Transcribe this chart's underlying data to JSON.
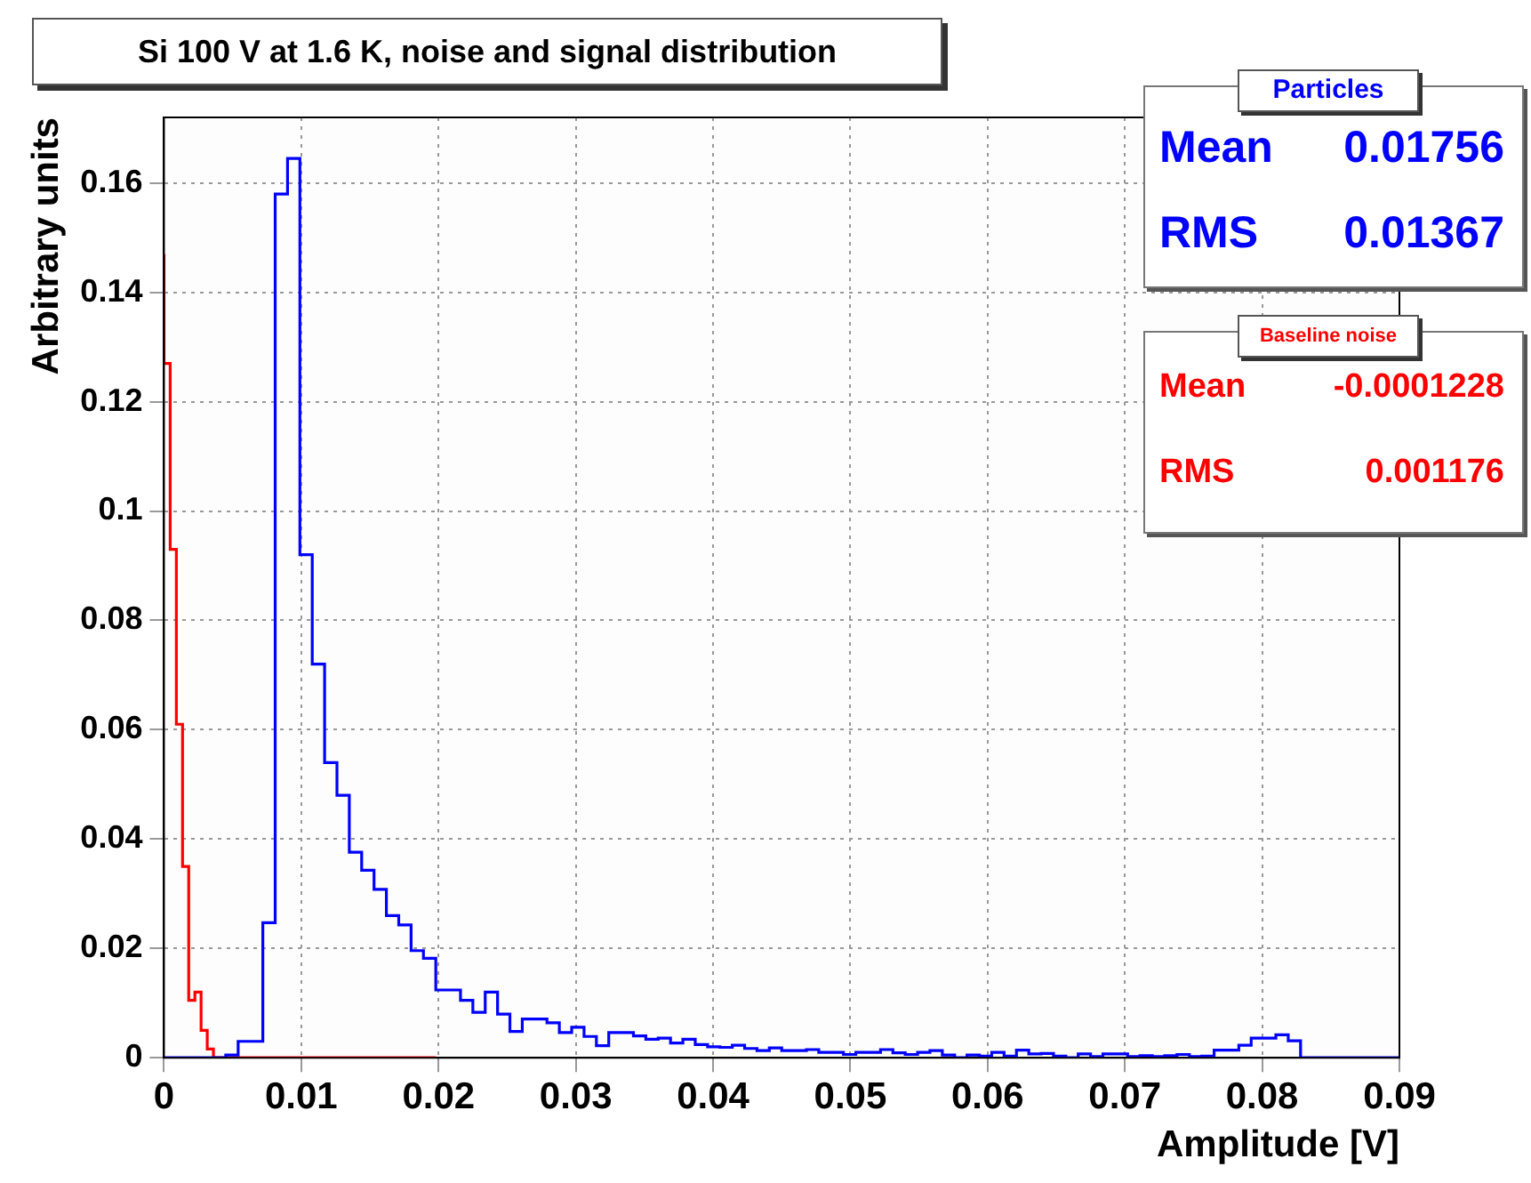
{
  "chart_data": {
    "type": "step",
    "title": "Si 100 V at 1.6 K, noise and signal distribution",
    "xlabel": "Amplitude [V]",
    "ylabel": "Arbitrary units",
    "xlim": [
      0,
      0.09
    ],
    "xticks": [
      0,
      0.01,
      0.02,
      0.03,
      0.04,
      0.05,
      0.06,
      0.07,
      0.08,
      0.09
    ],
    "ylim": [
      0,
      0.172
    ],
    "yticks": [
      0,
      0.02,
      0.04,
      0.06,
      0.08,
      0.1,
      0.12,
      0.14,
      0.16
    ],
    "grid": true,
    "annotations": [
      "Mean 0.01756",
      "RMS 0.01367",
      "Mean -0.0001228",
      "RMS 0.001176"
    ],
    "series": [
      {
        "name": "Particles",
        "color": "#0000ff",
        "x": [
          0,
          0.0009,
          0.0018,
          0.0027,
          0.0036,
          0.0045,
          0.0054,
          0.0063,
          0.0072,
          0.0081,
          0.009,
          0.0099,
          0.0108,
          0.0117,
          0.0126,
          0.0135,
          0.0144,
          0.0153,
          0.0162,
          0.0171,
          0.018,
          0.0189,
          0.0198,
          0.0207,
          0.0216,
          0.0225,
          0.0234,
          0.0243,
          0.0252,
          0.0261,
          0.027,
          0.0279,
          0.0288,
          0.0297,
          0.0306,
          0.0315,
          0.0324,
          0.0333,
          0.0342,
          0.0351,
          0.036,
          0.0369,
          0.0378,
          0.0387,
          0.0396,
          0.0405,
          0.0414,
          0.0423,
          0.0432,
          0.0441,
          0.045,
          0.0459,
          0.0468,
          0.0477,
          0.0486,
          0.0495,
          0.0504,
          0.0513,
          0.0522,
          0.0531,
          0.054,
          0.0549,
          0.0558,
          0.0567,
          0.0576,
          0.0585,
          0.0594,
          0.0603,
          0.0612,
          0.0621,
          0.063,
          0.0639,
          0.0648,
          0.0657,
          0.0666,
          0.0675,
          0.0684,
          0.0693,
          0.0702,
          0.0711,
          0.072,
          0.0729,
          0.0738,
          0.0747,
          0.0756,
          0.0765,
          0.0774,
          0.0783,
          0.0792,
          0.0801,
          0.081,
          0.0819,
          0.0828,
          0.0837,
          0.0846,
          0.0855,
          0.0864,
          0.0873,
          0.0882,
          0.0891,
          0.09
        ],
        "values": [
          0,
          0,
          0,
          0,
          0,
          0,
          0.0005,
          0.003,
          0.003,
          0.0247,
          0.158,
          0.1645,
          0.092,
          0.072,
          0.054,
          0.048,
          0.0376,
          0.0343,
          0.0308,
          0.026,
          0.0243,
          0.0196,
          0.0182,
          0.0124,
          0.0124,
          0.0105,
          0.0083,
          0.012,
          0.008,
          0.0048,
          0.0071,
          0.0071,
          0.0064,
          0.0046,
          0.0056,
          0.0039,
          0.0022,
          0.0046,
          0.0046,
          0.004,
          0.0034,
          0.0036,
          0.0027,
          0.0034,
          0.0024,
          0.002,
          0.0019,
          0.0023,
          0.0017,
          0.0013,
          0.0018,
          0.0013,
          0.0013,
          0.0015,
          0.001,
          0.001,
          0.0006,
          0.001,
          0.001,
          0.0015,
          0.0009,
          0.0006,
          0.001,
          0.0013,
          0.0005,
          0,
          0.0005,
          0.0003,
          0.001,
          0.0003,
          0.0014,
          0.0007,
          0.0008,
          0.0003,
          0,
          0.0007,
          0.0002,
          0.0007,
          0.0007,
          0.0002,
          0.0004,
          0.0002,
          0.0004,
          0.0006,
          0.0002,
          0.0003,
          0.0014,
          0.0014,
          0.0023,
          0.0036,
          0.0036,
          0.0042,
          0.0031,
          0,
          0,
          0,
          0,
          0,
          0,
          0,
          0
        ]
      },
      {
        "name": "Baseline noise",
        "color": "#ff0000",
        "x": [
          0,
          0.00045,
          0.0009,
          0.00135,
          0.0018,
          0.00225,
          0.0027,
          0.00315,
          0.0036,
          0.00405,
          0.0045,
          0.00495,
          0.0054,
          0.00585,
          0.0063,
          0.00675,
          0.0072,
          0.00765,
          0.0081,
          0.00855,
          0.009,
          0.00945,
          0.0099,
          0.01035,
          0.0108,
          0.01125,
          0.0117,
          0.01215,
          0.0126,
          0.01305,
          0.0135,
          0.01395,
          0.0144,
          0.01485,
          0.0153,
          0.01575,
          0.0162,
          0.01665,
          0.0171,
          0.01755,
          0.018,
          0.01845,
          0.0189,
          0.01935,
          0.0198
        ],
        "values": [
          0.147,
          0.127,
          0.093,
          0.061,
          0.035,
          0.0105,
          0.012,
          0.005,
          0.0016,
          0,
          0,
          0,
          0,
          0,
          0,
          0,
          0,
          0,
          0,
          0,
          0,
          0,
          0,
          0,
          0,
          0,
          0,
          0,
          0,
          0,
          0,
          0,
          0,
          0,
          0,
          0,
          0,
          0,
          0,
          0,
          0,
          0,
          0,
          0,
          0
        ]
      }
    ]
  }
}
